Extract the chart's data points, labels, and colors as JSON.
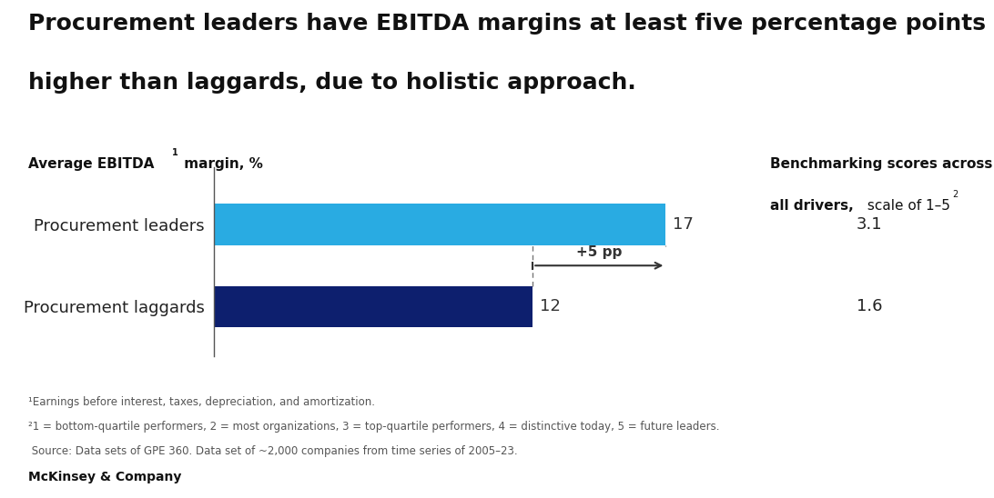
{
  "title_line1": "Procurement leaders have EBITDA margins at least five percentage points",
  "title_line2": "higher than laggards, due to holistic approach.",
  "bars": [
    {
      "label": "Procurement leaders",
      "value": 17,
      "color": "#29ABE2",
      "score": "3.1"
    },
    {
      "label": "Procurement laggards",
      "value": 12,
      "color": "#0D1F6E",
      "score": "1.6"
    }
  ],
  "xlim": [
    0,
    20
  ],
  "footnote1": "¹Earnings before interest, taxes, depreciation, and amortization.",
  "footnote2": "²1 = bottom-quartile performers, 2 = most organizations, 3 = top-quartile performers, 4 = distinctive today, 5 = future leaders.",
  "footnote3": " Source: Data sets of GPE 360. Data set of ~2,000 companies from time series of 2005–23.",
  "footer": "McKinsey & Company",
  "annotation_text": "+5 pp",
  "arrow_from": 12,
  "arrow_to": 17,
  "bg_color": "#FFFFFF",
  "title_fontsize": 18,
  "bar_label_fontsize": 13,
  "value_fontsize": 13,
  "score_fontsize": 13,
  "axis_label_fontsize": 11,
  "footnote_fontsize": 8.5,
  "footer_fontsize": 10
}
